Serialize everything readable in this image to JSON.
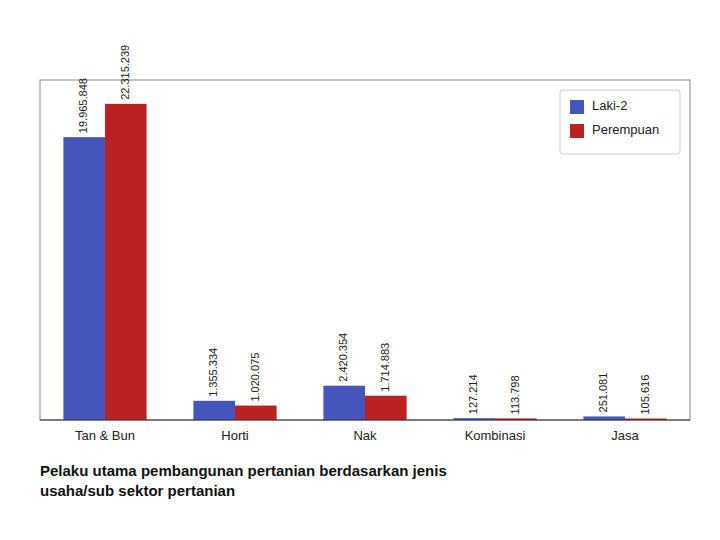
{
  "chart_data": {
    "type": "bar",
    "title": "Pelaku utama pembangunan pertanian berdasarkan jenis\nusaha/sub sektor pertanian",
    "categories": [
      "Tan & Bun",
      "Horti",
      "Nak",
      "Kombinasi",
      "Jasa"
    ],
    "series": [
      {
        "name": "Laki-2",
        "color": "#4455bb",
        "values": [
          19965848,
          1355334,
          2420354,
          127214,
          251081
        ],
        "value_labels": [
          "19.965.848",
          "1.355.334",
          "2.420.354",
          "127.214",
          "251.081"
        ]
      },
      {
        "name": "Perempuan",
        "color": "#bb2222",
        "values": [
          22315239,
          1020075,
          1714883,
          113798,
          105616
        ],
        "value_labels": [
          "22.315.239",
          "1.020.075",
          "1.714.883",
          "113.798",
          "105.616"
        ]
      }
    ],
    "ylim": [
      0,
      24000000
    ],
    "tick_labels": "x",
    "data_labels": true,
    "legend": "upper right"
  }
}
